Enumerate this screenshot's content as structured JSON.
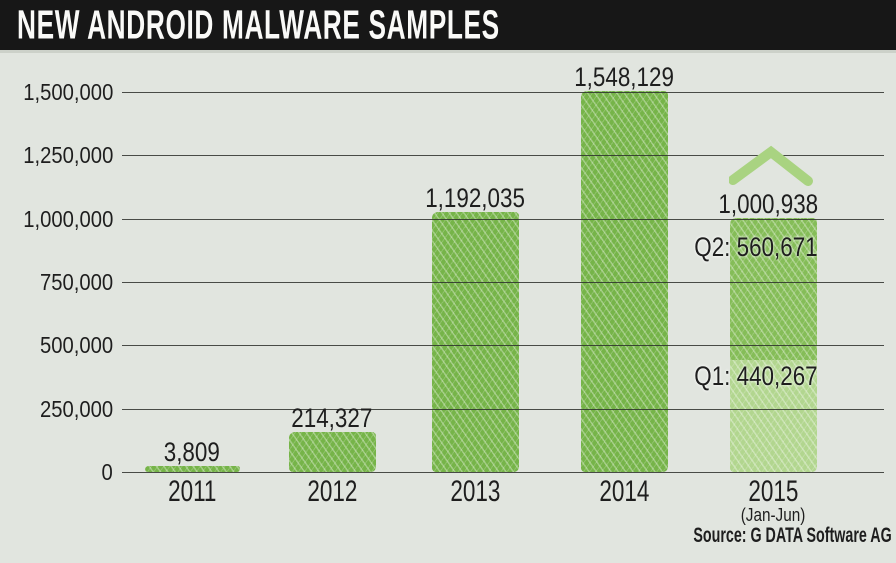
{
  "title": "NEW ANDROID MALWARE SAMPLES",
  "source_note": "Source: G DATA Software AG",
  "chart_data": {
    "type": "bar",
    "title": "NEW ANDROID MALWARE SAMPLES",
    "categories": [
      "2011",
      "2012",
      "2013",
      "2014",
      "2015"
    ],
    "values": [
      3809,
      214327,
      1192035,
      1548129,
      1000938
    ],
    "bars": [
      {
        "category": "2011",
        "value": 3809,
        "label": "3,809"
      },
      {
        "category": "2012",
        "value": 214327,
        "label": "214,327"
      },
      {
        "category": "2013",
        "value": 1192035,
        "label": "1,192,035"
      },
      {
        "category": "2014",
        "value": 1548129,
        "label": "1,548,129"
      },
      {
        "category": "2015",
        "value": 1000938,
        "label": "1,000,938",
        "sublabel": "(Jan-Jun)",
        "annotation_icon": "chevron-up",
        "segments": [
          {
            "name": "Q1",
            "value": 440267,
            "label": "Q1: 440,267",
            "color": "#b2d68f"
          },
          {
            "name": "Q2",
            "value": 560671,
            "label": "Q2: 560,671",
            "color": "#85bd58"
          }
        ]
      }
    ],
    "xlabel": "",
    "ylabel": "",
    "ylim": [
      0,
      1500000
    ],
    "ytick_interval": 250000,
    "yticks": [
      {
        "value": 1500000,
        "label": "1,500,000"
      },
      {
        "value": 1250000,
        "label": "1,250,000"
      },
      {
        "value": 1000000,
        "label": "1,000,000"
      },
      {
        "value": 750000,
        "label": "750,000"
      },
      {
        "value": 500000,
        "label": "500,000"
      },
      {
        "value": 250000,
        "label": "250,000"
      },
      {
        "value": 0,
        "label": "0"
      }
    ],
    "grid": true,
    "gridlines_over_bars": true,
    "legend": "none",
    "source": "Source: G DATA Software AG",
    "colors": {
      "bar": "#76b449",
      "bar_light": "#b2d68f",
      "bar_2015_top": "#85bd58",
      "chevron": "#a9d381",
      "background": "#e1e5df",
      "title_bar": "#171717",
      "title_text": "#fafaf8",
      "gridline": "#4a4d49",
      "text": "#1e1e1e"
    }
  }
}
